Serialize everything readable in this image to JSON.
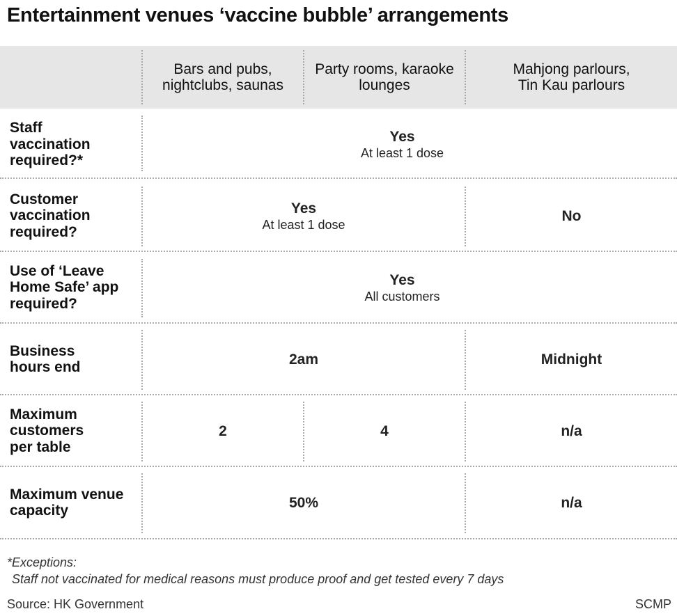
{
  "title": "Entertainment venues ‘vaccine bubble’ arrangements",
  "columns": [
    {
      "line1": "Bars and pubs,",
      "line2": "nightclubs, saunas"
    },
    {
      "line1": "Party rooms, karaoke",
      "line2": "lounges"
    },
    {
      "line1": "Mahjong parlours,",
      "line2": "Tin Kau parlours"
    }
  ],
  "rows": {
    "staff_vaccination": {
      "label": [
        "Staff",
        "vaccination",
        "required?*"
      ],
      "all": {
        "main": "Yes",
        "sub": "At least 1 dose"
      }
    },
    "customer_vaccination": {
      "label": [
        "Customer",
        "vaccination",
        "required?"
      ],
      "bars_party": {
        "main": "Yes",
        "sub": "At least 1 dose"
      },
      "mahjong": {
        "main": "No"
      }
    },
    "leave_home_safe": {
      "label": [
        "Use of ‘Leave",
        "Home Safe’ app",
        "required?"
      ],
      "all": {
        "main": "Yes",
        "sub": "All customers"
      }
    },
    "business_hours": {
      "label": [
        "Business",
        "hours end"
      ],
      "bars_party": {
        "main": "2am"
      },
      "mahjong": {
        "main": "Midnight"
      }
    },
    "max_customers": {
      "label": [
        "Maximum",
        "customers",
        "per table"
      ],
      "bars": {
        "main": "2"
      },
      "party": {
        "main": "4"
      },
      "mahjong": {
        "main": "n/a"
      }
    },
    "max_capacity": {
      "label": [
        "Maximum venue",
        "capacity"
      ],
      "bars_party": {
        "main": "50%"
      },
      "mahjong": {
        "main": "n/a"
      }
    }
  },
  "footnote": {
    "heading": "*Exceptions:",
    "text": "Staff not vaccinated for medical reasons must produce proof and get tested every 7 days"
  },
  "source": "Source: HK Government",
  "credit": "SCMP"
}
